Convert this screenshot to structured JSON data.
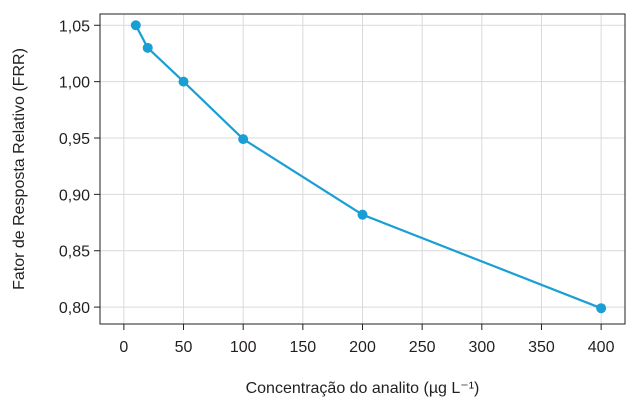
{
  "chart_data": {
    "type": "line",
    "xlabel": "Concentração do analito (µg L⁻¹)",
    "ylabel": "Fator de Resposta Relativo (FRR)",
    "xlim": [
      -20,
      420
    ],
    "ylim": [
      0.785,
      1.06
    ],
    "xticks": [
      0,
      50,
      100,
      150,
      200,
      250,
      300,
      350,
      400
    ],
    "xtick_labels": [
      "0",
      "50",
      "100",
      "150",
      "200",
      "250",
      "300",
      "350",
      "400"
    ],
    "yticks": [
      0.8,
      0.85,
      0.9,
      0.95,
      1.0,
      1.05
    ],
    "ytick_labels": [
      "0,80",
      "0,85",
      "0,90",
      "0,95",
      "1,00",
      "1,05"
    ],
    "grid": true,
    "series": [
      {
        "color": "#1a9fd5",
        "x": [
          10,
          20,
          50,
          100,
          200,
          400
        ],
        "y": [
          1.05,
          1.03,
          1.0,
          0.949,
          0.882,
          0.799
        ]
      }
    ]
  }
}
